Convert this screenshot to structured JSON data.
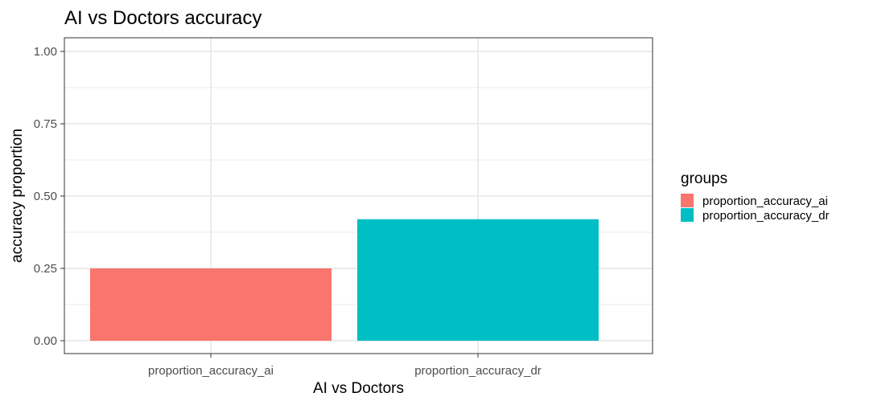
{
  "chart_data": {
    "type": "bar",
    "title": "AI vs Doctors accuracy",
    "xlabel": "AI vs Doctors",
    "ylabel": "accuracy proportion",
    "categories": [
      "proportion_accuracy_ai",
      "proportion_accuracy_dr"
    ],
    "values": [
      0.25,
      0.42
    ],
    "colors": [
      "#F8766D",
      "#00BFC4"
    ],
    "ylim": [
      0,
      1
    ],
    "yticks": [
      0,
      0.25,
      0.5,
      0.75,
      1
    ],
    "ytick_labels": [
      "0.00",
      "0.25",
      "0.50",
      "0.75",
      "1.00"
    ],
    "grid": true,
    "legend": {
      "title": "groups",
      "placement": "right",
      "entries": [
        "proportion_accuracy_ai",
        "proportion_accuracy_dr"
      ]
    }
  }
}
